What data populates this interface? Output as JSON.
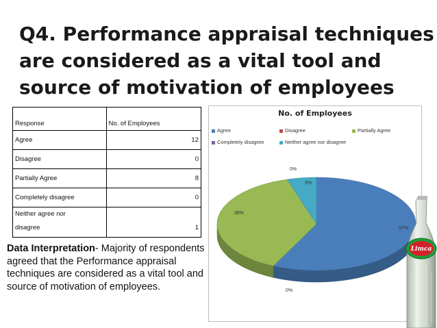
{
  "slide": {
    "title_lines": [
      "Q4.  Performance appraisal techniques",
      "are considered as a vital tool and",
      "source of motivation of employees"
    ]
  },
  "table": {
    "headers": [
      "Response",
      "No. of Employees"
    ],
    "rows": [
      {
        "response": "Agree",
        "count": "12"
      },
      {
        "response": "Disagree",
        "count": "0"
      },
      {
        "response": "Partially Agree",
        "count": "8"
      },
      {
        "response": "Completely disagree",
        "count": "0"
      },
      {
        "response_lines": [
          "Neither agree nor",
          "disagree"
        ],
        "count": "1"
      }
    ]
  },
  "interpretation": {
    "label": "Data Interpretation",
    "text": "- Majority of respondents agreed that the Performance appraisal techniques are considered as a vital tool and source of motivation of employees."
  },
  "chart_data": {
    "type": "pie",
    "title": "No. of Employees",
    "legend_position": "top",
    "categories": [
      "Agree",
      "Disagree",
      "Partially Agree",
      "Completely disagree",
      "Neither agree nor disagree"
    ],
    "values": [
      12,
      0,
      8,
      0,
      1
    ],
    "percent_labels": [
      "57%",
      "0%",
      "38%",
      "0%",
      "5%"
    ],
    "colors": [
      "#4a7ebb",
      "#be4b48",
      "#98b954",
      "#7d60a0",
      "#46aac5"
    ]
  },
  "logo": {
    "text": "Limca"
  }
}
